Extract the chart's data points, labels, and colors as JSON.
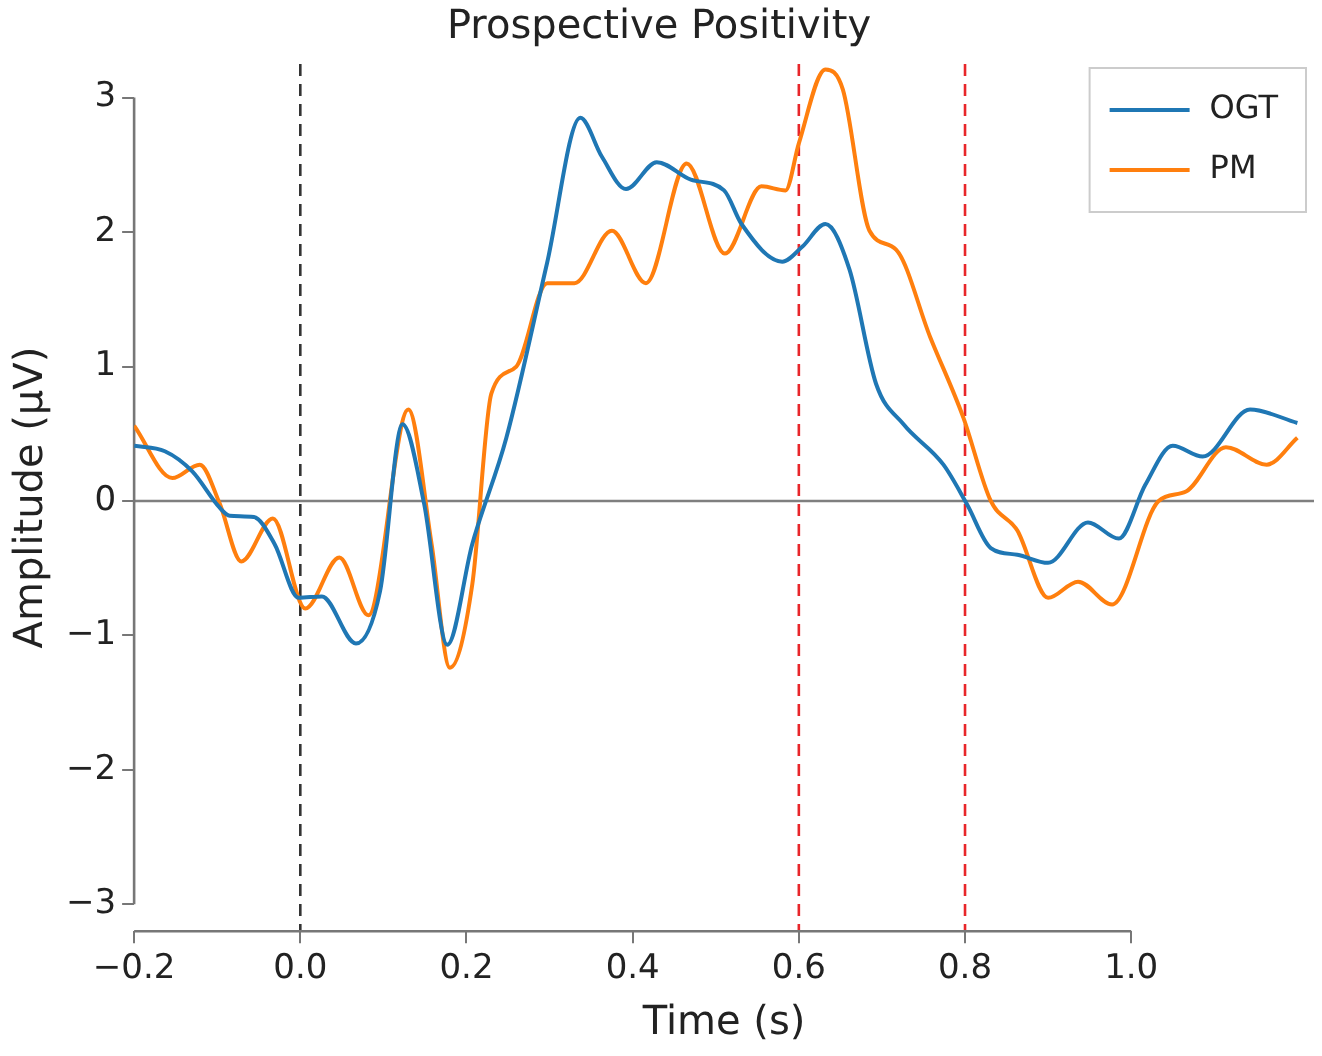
{
  "chart_data": {
    "type": "line",
    "title": "Prospective Positivity",
    "xlabel": "Time (s)",
    "ylabel": "Amplitude (μV)",
    "xlim": [
      -0.2,
      1.22
    ],
    "ylim": [
      -3.2,
      3.25
    ],
    "xticks": [
      {
        "value": -0.2,
        "label": "−0.2"
      },
      "0.0",
      0.2,
      0.4,
      0.6,
      0.8,
      "1.0"
    ],
    "yticks": [
      {
        "value": -3,
        "label": "−3"
      },
      {
        "value": -2,
        "label": "−2"
      },
      {
        "value": -1,
        "label": "−1"
      },
      0,
      1,
      2,
      3
    ],
    "grid": false,
    "legend": "top right",
    "marker": "none",
    "line_style": "solid",
    "ref_lines": [
      {
        "axis": "x",
        "value": 0,
        "color": "#333333",
        "line_style": "dashed"
      },
      {
        "axis": "x",
        "value": 0.6,
        "color": "#e8262a",
        "line_style": "dashed"
      },
      {
        "axis": "x",
        "value": 0.8,
        "color": "#e8262a",
        "line_style": "dashed"
      },
      {
        "axis": "y",
        "value": 0,
        "color": "#7f7f7f",
        "line_style": "solid"
      }
    ],
    "series": [
      {
        "name": "OGT",
        "color": "#1f77b4",
        "x": [
          -0.2,
          -0.163,
          -0.13,
          -0.097,
          -0.085,
          -0.056,
          -0.031,
          -0.002,
          0.026,
          0.067,
          0.096,
          0.123,
          0.149,
          0.177,
          0.207,
          0.248,
          0.297,
          0.337,
          0.363,
          0.392,
          0.429,
          0.47,
          0.51,
          0.531,
          0.58,
          0.604,
          0.632,
          0.661,
          0.693,
          0.726,
          0.774,
          0.802,
          0.831,
          0.863,
          0.9,
          0.948,
          0.985,
          1.017,
          1.05,
          1.086,
          1.143,
          1.2
        ],
        "values": [
          0.41,
          0.37,
          0.22,
          -0.05,
          -0.11,
          -0.12,
          -0.32,
          -0.72,
          -0.71,
          -1.06,
          -0.67,
          0.57,
          -0.02,
          -1.07,
          -0.32,
          0.47,
          1.77,
          2.85,
          2.56,
          2.32,
          2.52,
          2.39,
          2.31,
          2.06,
          1.78,
          1.89,
          2.06,
          1.72,
          0.87,
          0.57,
          0.27,
          -0.02,
          -0.35,
          -0.4,
          -0.46,
          -0.16,
          -0.28,
          0.12,
          0.41,
          0.33,
          0.68,
          0.58
        ]
      },
      {
        "name": "PM",
        "color": "#ff7f0e",
        "x": [
          -0.2,
          -0.154,
          -0.121,
          -0.097,
          -0.071,
          -0.033,
          0.006,
          0.047,
          0.082,
          0.13,
          0.158,
          0.18,
          0.207,
          0.23,
          0.26,
          0.297,
          0.33,
          0.375,
          0.416,
          0.465,
          0.511,
          0.555,
          0.584,
          0.6,
          0.632,
          0.653,
          0.685,
          0.717,
          0.758,
          0.798,
          0.831,
          0.863,
          0.9,
          0.936,
          0.977,
          1.033,
          1.066,
          1.114,
          1.163,
          1.2
        ],
        "values": [
          0.56,
          0.17,
          0.27,
          -0.02,
          -0.45,
          -0.13,
          -0.8,
          -0.42,
          -0.85,
          0.68,
          -0.32,
          -1.24,
          -0.62,
          0.8,
          1.0,
          1.62,
          1.62,
          2.01,
          1.62,
          2.51,
          1.84,
          2.34,
          2.31,
          2.66,
          3.21,
          3.06,
          2.01,
          1.87,
          1.22,
          0.62,
          0.0,
          -0.22,
          -0.72,
          -0.6,
          -0.77,
          0.0,
          0.07,
          0.4,
          0.27,
          0.47
        ]
      }
    ]
  }
}
